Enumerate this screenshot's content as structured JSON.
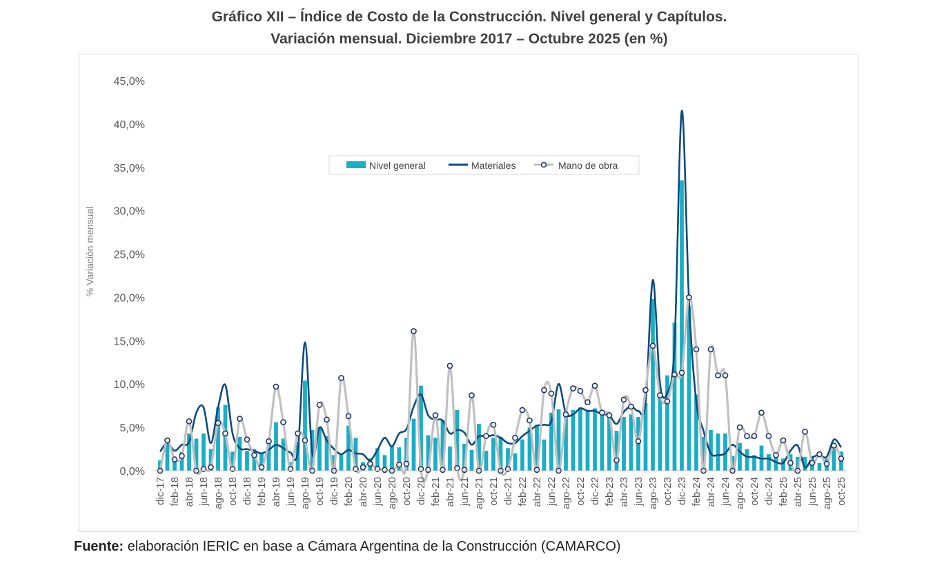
{
  "title_line1": "Gráfico XII – Índice de Costo de la Construcción. Nivel general y Capítulos.",
  "title_line2": "Variación mensual. Diciembre 2017 – Octubre 2025 (en %)",
  "source_label": "Fuente:",
  "source_text": "elaboración IERIC en base a Cámara Argentina de la Construcción (CAMARCO)",
  "chart_data": {
    "type": "bar",
    "ylabel": "% Variación mensual",
    "ylim": [
      0,
      45
    ],
    "yticks": [
      "0,0%",
      "5,0%",
      "10,0%",
      "15,0%",
      "20,0%",
      "25,0%",
      "30,0%",
      "35,0%",
      "40,0%",
      "45,0%"
    ],
    "legend_position": "top-center",
    "grid": false,
    "colors": {
      "nivel_general": "#1aadc6",
      "materiales": "#0d4a7c",
      "mano_de_obra": "#c0c0c0",
      "marker_fill": "#e8eef7"
    },
    "categories": [
      "dic-17",
      "ene-18",
      "feb-18",
      "mar-18",
      "abr-18",
      "may-18",
      "jun-18",
      "jul-18",
      "ago-18",
      "sep-18",
      "oct-18",
      "nov-18",
      "dic-18",
      "ene-19",
      "feb-19",
      "mar-19",
      "abr-19",
      "may-19",
      "jun-19",
      "jul-19",
      "ago-19",
      "sep-19",
      "oct-19",
      "nov-19",
      "dic-19",
      "ene-20",
      "feb-20",
      "mar-20",
      "abr-20",
      "may-20",
      "jun-20",
      "jul-20",
      "ago-20",
      "sep-20",
      "oct-20",
      "nov-20",
      "dic-20",
      "ene-21",
      "feb-21",
      "mar-21",
      "abr-21",
      "may-21",
      "jun-21",
      "jul-21",
      "ago-21",
      "sep-21",
      "oct-21",
      "nov-21",
      "dic-21",
      "ene-22",
      "feb-22",
      "mar-22",
      "abr-22",
      "may-22",
      "jun-22",
      "jul-22",
      "ago-22",
      "sep-22",
      "oct-22",
      "nov-22",
      "dic-22",
      "ene-23",
      "feb-23",
      "mar-23",
      "abr-23",
      "may-23",
      "jun-23",
      "jul-23",
      "ago-23",
      "sep-23",
      "oct-23",
      "nov-23",
      "dic-23",
      "ene-24",
      "feb-24",
      "mar-24",
      "abr-24",
      "may-24",
      "jun-24",
      "jul-24",
      "ago-24",
      "sep-24",
      "oct-24",
      "nov-24",
      "dic-24",
      "ene-25",
      "feb-25",
      "mar-25",
      "abr-25",
      "may-25",
      "jun-25",
      "jul-25",
      "ago-25",
      "sep-25",
      "oct-25"
    ],
    "x_tick_labels": [
      "dic-17",
      "feb-18",
      "abr-18",
      "jun-18",
      "ago-18",
      "oct-18",
      "dic-18",
      "feb-19",
      "abr-19",
      "jun-19",
      "ago-19",
      "oct-19",
      "dic-19",
      "feb-20",
      "abr-20",
      "jun-20",
      "ago-20",
      "oct-20",
      "dic-20",
      "feb-21",
      "abr-21",
      "jun-21",
      "ago-21",
      "oct-21",
      "dic-21",
      "feb-22",
      "abr-22",
      "jun-22",
      "ago-22",
      "oct-22",
      "dic-22",
      "feb-23",
      "abr-23",
      "jun-23",
      "ago-23",
      "oct-23",
      "dic-23",
      "feb-24",
      "abr-24",
      "jun-24",
      "ago-24",
      "oct-24",
      "dic-24",
      "feb-25",
      "abr-25",
      "jun-25",
      "ago-25",
      "oct-25"
    ],
    "series": [
      {
        "name": "Nivel general",
        "kind": "bar",
        "values": [
          1.2,
          3.2,
          1.6,
          2.2,
          4.3,
          3.7,
          4.3,
          2.5,
          7.3,
          7.6,
          2.2,
          3.9,
          2.3,
          2.5,
          2.0,
          3.6,
          5.6,
          3.7,
          1.0,
          3.3,
          10.4,
          4.7,
          5.0,
          4.0,
          1.8,
          2.0,
          5.2,
          3.8,
          1.0,
          1.4,
          2.6,
          1.8,
          2.8,
          2.7,
          3.8,
          6.0,
          9.8,
          4.1,
          3.8,
          5.8,
          2.8,
          7.0,
          3.1,
          2.4,
          5.4,
          2.3,
          3.8,
          3.9,
          2.6,
          2.0,
          3.6,
          5.0,
          5.3,
          3.6,
          6.7,
          7.1,
          6.8,
          7.0,
          7.3,
          7.0,
          7.2,
          7.0,
          6.3,
          4.6,
          6.2,
          6.5,
          6.2,
          7.8,
          19.8,
          8.7,
          11.0,
          17.1,
          33.5,
          19.0,
          8.8,
          3.9,
          4.7,
          4.3,
          4.3,
          1.7,
          3.2,
          2.5,
          1.8,
          2.9,
          1.9,
          1.7,
          1.4,
          1.9,
          1.6,
          1.6,
          1.7,
          0.9,
          1.4,
          2.5,
          2.2
        ]
      },
      {
        "name": "Materiales",
        "kind": "line",
        "values": [
          2.2,
          3.2,
          2.3,
          3.0,
          3.3,
          6.7,
          7.3,
          3.2,
          7.3,
          9.9,
          4.3,
          2.6,
          2.5,
          2.3,
          2.0,
          2.4,
          3.0,
          2.6,
          2.1,
          2.2,
          14.8,
          2.0,
          5.0,
          3.5,
          2.5,
          1.9,
          2.4,
          2.0,
          1.9,
          1.2,
          2.4,
          3.8,
          2.8,
          4.3,
          4.8,
          7.4,
          8.8,
          6.4,
          5.9,
          5.8,
          4.3,
          4.7,
          4.4,
          3.0,
          4.0,
          3.9,
          4.1,
          3.8,
          3.2,
          3.2,
          4.0,
          4.6,
          5.2,
          5.3,
          5.7,
          10.0,
          6.6,
          6.5,
          7.2,
          6.9,
          6.9,
          6.5,
          6.4,
          5.4,
          6.8,
          7.4,
          6.9,
          7.8,
          22.0,
          10.0,
          9.0,
          14.5,
          41.5,
          19.5,
          8.0,
          4.6,
          2.0,
          1.8,
          2.0,
          3.0,
          2.2,
          1.6,
          1.6,
          1.4,
          1.4,
          1.0,
          0.9,
          2.3,
          2.9,
          0.4,
          1.5,
          1.8,
          1.6,
          3.6,
          2.7
        ]
      },
      {
        "name": "Mano de obra",
        "kind": "line_markers",
        "values": [
          0.0,
          3.5,
          1.3,
          1.7,
          5.7,
          0.0,
          0.2,
          0.4,
          5.5,
          4.3,
          0.2,
          6.0,
          3.6,
          1.8,
          0.4,
          3.4,
          9.7,
          5.6,
          0.2,
          4.3,
          3.5,
          0.0,
          7.6,
          5.9,
          0.0,
          10.7,
          6.3,
          0.2,
          0.4,
          0.8,
          0.2,
          0.1,
          0.0,
          0.7,
          0.8,
          16.1,
          0.2,
          0.1,
          6.4,
          0.1,
          12.1,
          0.3,
          0.1,
          8.7,
          0.0,
          4.0,
          5.3,
          0.0,
          0.2,
          3.8,
          7.0,
          5.8,
          0.1,
          9.3,
          8.9,
          0.0,
          6.5,
          9.5,
          9.2,
          7.9,
          9.8,
          6.7,
          6.4,
          1.2,
          8.2,
          7.4,
          3.4,
          9.3,
          14.4,
          8.7,
          8.0,
          11.1,
          11.3,
          20.0,
          14.0,
          0.0,
          14.0,
          11.0,
          11.0,
          0.0,
          5.0,
          4.0,
          4.0,
          6.7,
          4.0,
          1.8,
          3.5,
          0.9,
          0.0,
          4.5,
          0.9,
          1.9,
          0.8,
          2.9,
          1.4
        ]
      }
    ]
  }
}
